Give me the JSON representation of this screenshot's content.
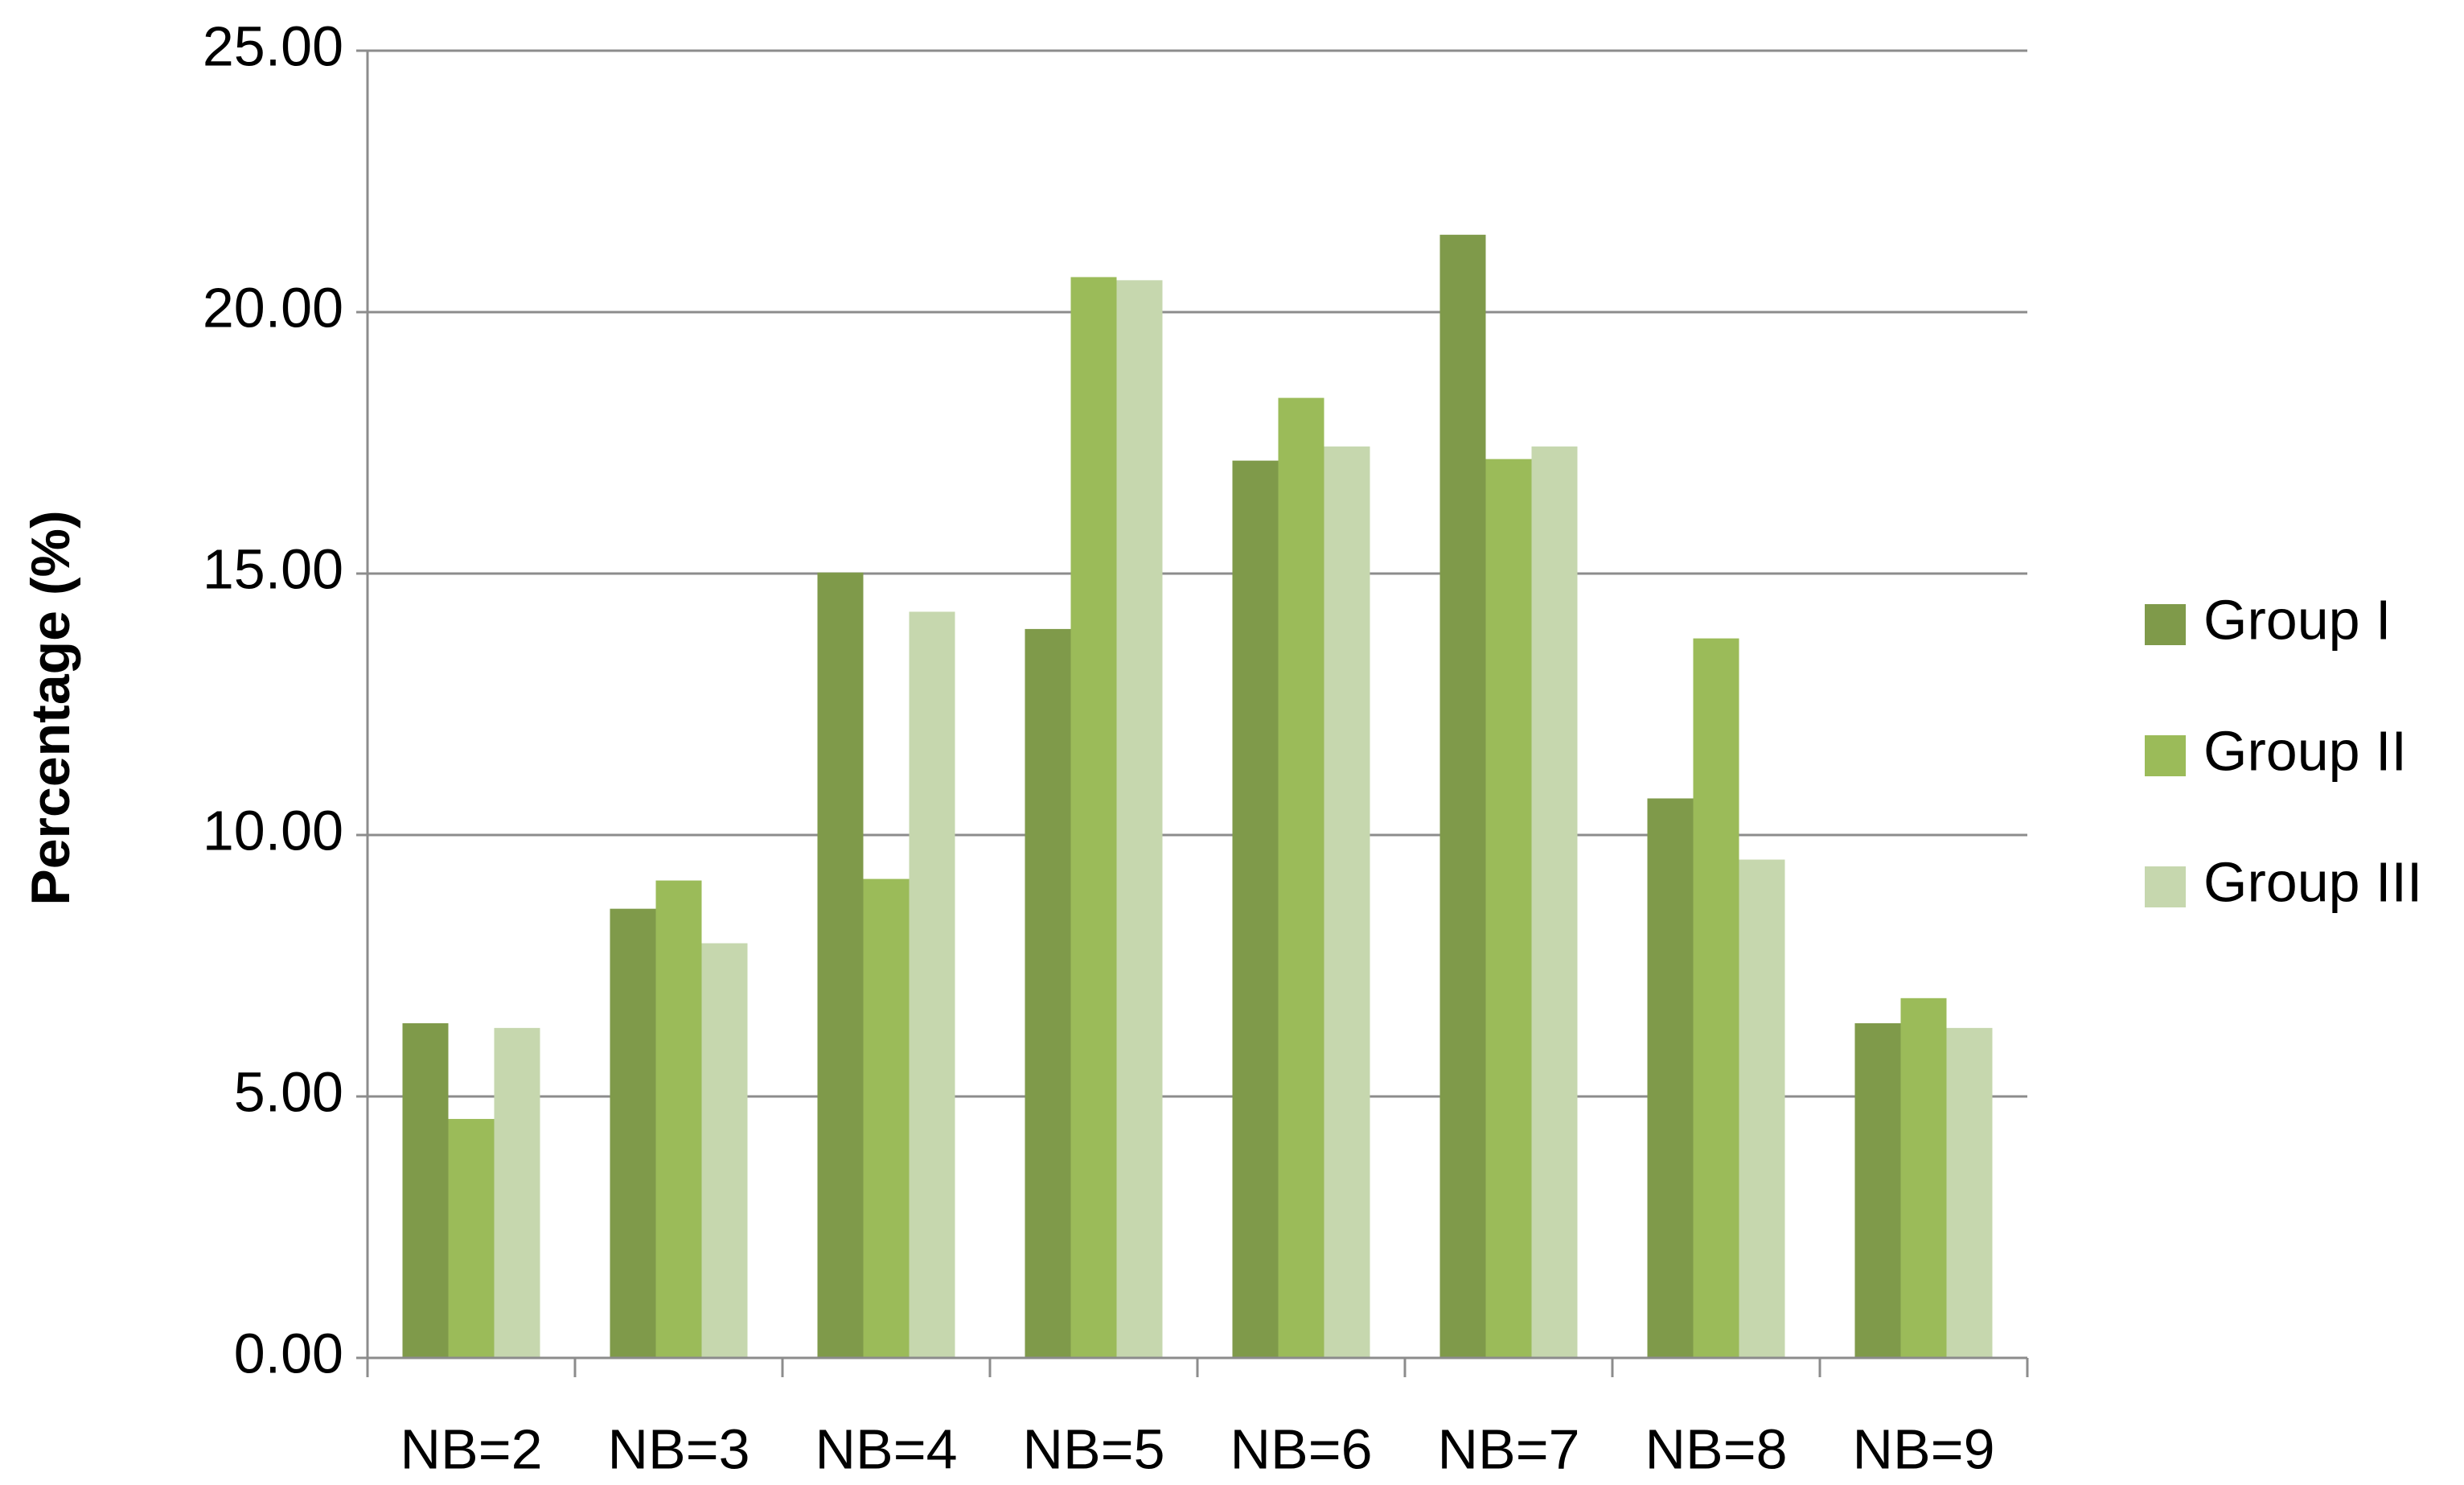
{
  "chart_data": {
    "type": "bar",
    "y_label": "Percentage (%)",
    "categories": [
      "NB=2",
      "NB=3",
      "NB=4",
      "NB=5",
      "NB=6",
      "NB=7",
      "NB=8",
      "NB=9"
    ],
    "series": [
      {
        "name": "Group I",
        "color": "#7f9a4a",
        "values": [
          6.4,
          8.59,
          15.02,
          13.94,
          17.16,
          21.48,
          10.7,
          6.4
        ]
      },
      {
        "name": "Group II",
        "color": "#9bbb59",
        "values": [
          4.57,
          9.13,
          9.16,
          20.67,
          18.36,
          17.19,
          13.76,
          6.88
        ]
      },
      {
        "name": "Group III",
        "color": "#c6d7ae",
        "values": [
          6.31,
          7.93,
          14.27,
          20.61,
          17.43,
          17.43,
          9.53,
          6.31
        ]
      }
    ],
    "ylim": [
      0,
      25
    ],
    "yticks": [
      {
        "value": 0,
        "label": "0.00"
      },
      {
        "value": 5,
        "label": "5.00"
      },
      {
        "value": 10,
        "label": "10.00"
      },
      {
        "value": 15,
        "label": "15.00"
      },
      {
        "value": 20,
        "label": "20.00"
      },
      {
        "value": 25,
        "label": "25.00"
      }
    ],
    "grid": true,
    "legend": "right"
  }
}
